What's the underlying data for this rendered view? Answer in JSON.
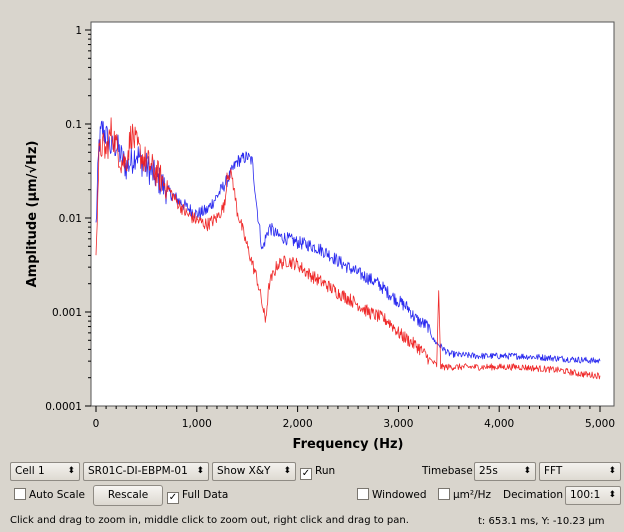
{
  "chart_data": {
    "type": "line",
    "xlabel": "Frequency (Hz)",
    "ylabel": "Amplitude (µm/√Hz)",
    "y_scale": "log",
    "xlim": [
      0,
      5050
    ],
    "ylim": [
      0.0001,
      1
    ],
    "grid": false,
    "x_ticks": [
      "0",
      "1,000",
      "2,000",
      "3,000",
      "4,000",
      "5,000"
    ],
    "y_ticks": [
      "1",
      "0.1",
      "0.01",
      "0.001",
      "0.0001"
    ],
    "series": [
      {
        "color": "#1f1fee",
        "x": [
          0,
          30,
          60,
          100,
          150,
          200,
          250,
          300,
          350,
          400,
          450,
          500,
          600,
          700,
          800,
          900,
          1000,
          1100,
          1200,
          1300,
          1400,
          1500,
          1550,
          1600,
          1650,
          1680,
          1720,
          1800,
          1900,
          2000,
          2100,
          2200,
          2300,
          2400,
          2500,
          2600,
          2700,
          2800,
          2900,
          3000,
          3100,
          3150,
          3200,
          3300,
          3350,
          3400,
          3500,
          3600,
          3800,
          4000,
          4200,
          4400,
          4600,
          4800,
          5000
        ],
        "y": [
          0.008,
          0.06,
          0.09,
          0.075,
          0.055,
          0.06,
          0.045,
          0.035,
          0.04,
          0.05,
          0.04,
          0.035,
          0.027,
          0.02,
          0.016,
          0.013,
          0.011,
          0.012,
          0.017,
          0.025,
          0.04,
          0.045,
          0.04,
          0.012,
          0.0045,
          0.006,
          0.008,
          0.0065,
          0.006,
          0.0055,
          0.0052,
          0.0048,
          0.0042,
          0.0035,
          0.003,
          0.0026,
          0.0023,
          0.002,
          0.0016,
          0.0013,
          0.0011,
          0.0009,
          0.0008,
          0.0007,
          0.0005,
          0.00045,
          0.00036,
          0.00035,
          0.00034,
          0.00034,
          0.00034,
          0.00033,
          0.00032,
          0.00031,
          0.0003
        ]
      },
      {
        "color": "#ee1f1f",
        "x": [
          0,
          30,
          60,
          100,
          150,
          200,
          250,
          300,
          350,
          400,
          450,
          500,
          600,
          700,
          800,
          900,
          1000,
          1100,
          1200,
          1280,
          1300,
          1350,
          1400,
          1500,
          1600,
          1650,
          1680,
          1720,
          1800,
          1900,
          2000,
          2100,
          2200,
          2300,
          2400,
          2500,
          2600,
          2700,
          2800,
          2900,
          2950,
          3000,
          3100,
          3200,
          3300,
          3380,
          3400,
          3420,
          3500,
          3600,
          3800,
          4000,
          4200,
          4400,
          4600,
          4800,
          5000
        ],
        "y": [
          0.005,
          0.045,
          0.06,
          0.05,
          0.085,
          0.06,
          0.04,
          0.04,
          0.08,
          0.06,
          0.045,
          0.04,
          0.03,
          0.022,
          0.015,
          0.011,
          0.0095,
          0.0085,
          0.01,
          0.014,
          0.03,
          0.028,
          0.012,
          0.005,
          0.0022,
          0.0012,
          0.0008,
          0.002,
          0.0032,
          0.0035,
          0.0032,
          0.0026,
          0.0022,
          0.0019,
          0.0016,
          0.0014,
          0.0012,
          0.001,
          0.0009,
          0.0008,
          0.0007,
          0.0006,
          0.0005,
          0.00042,
          0.00032,
          0.00027,
          0.0016,
          0.00026,
          0.00026,
          0.00026,
          0.00026,
          0.00026,
          0.00026,
          0.00025,
          0.00024,
          0.00022,
          0.00021
        ]
      }
    ]
  },
  "controls": {
    "cell_combo": "Cell 1",
    "device_combo": "SR01C-DI-EBPM-01",
    "show_combo": "Show X&Y",
    "run_label": "Run",
    "timebase_label": "Timebase",
    "timebase_combo": "25s",
    "mode_combo": "FFT",
    "auto_scale_label": "Auto Scale",
    "rescale_label": "Rescale",
    "full_data_label": "Full Data",
    "windowed_label": "Windowed",
    "units_label": "µm²/Hz",
    "decimation_label": "Decimation",
    "decimation_combo": "100:1"
  },
  "status": {
    "hint": "Click and drag to zoom in, middle click to zoom out, right click and drag to pan.",
    "readout": "t: 653.1 ms, Y: -10.23 µm"
  },
  "check_glyph": "✓",
  "combo_arrow_glyph": "⬍"
}
